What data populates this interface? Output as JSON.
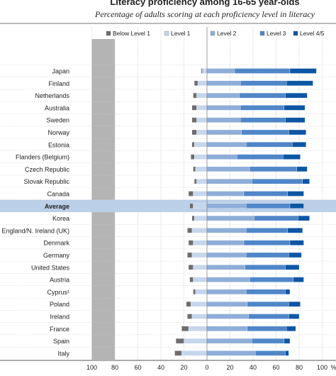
{
  "chart_data": {
    "type": "bar",
    "stacking": "diverging",
    "title": "Literacy proficiency among 16-65 year-olds",
    "subtitle": "Percentage of adults scoring at each proficiency level in literacy",
    "x_tick_labels": [
      "100",
      "80",
      "60",
      "40",
      "20",
      "0",
      "20",
      "40",
      "60",
      "80",
      "100",
      "%"
    ],
    "xlim": [
      -100,
      100
    ],
    "grid": true,
    "legend_position": "top",
    "highlight_category": "Average",
    "categories": [
      "Japan",
      "Finland",
      "Netherlands",
      "Australia",
      "Sweden",
      "Norway",
      "Estonia",
      "Flanders (Belgium)",
      "Czech Republic",
      "Slovak Republic",
      "Canada",
      "Average",
      "Korea",
      "England/N. Ireland (UK)",
      "Denmark",
      "Germany",
      "United States",
      "Austria",
      "Cyprus¹",
      "Poland",
      "Ireland",
      "France",
      "Spain",
      "Italy"
    ],
    "series": [
      {
        "name": "Below Level 1",
        "side": "left",
        "color": "#6d6d6d",
        "values": [
          1,
          3,
          3,
          4,
          4,
          4,
          2,
          3,
          2,
          2,
          4,
          3,
          2,
          4,
          4,
          4,
          4,
          3,
          2,
          4,
          4,
          6,
          7,
          6
        ]
      },
      {
        "name": "Level 1",
        "side": "left",
        "color": "#c6d6ec",
        "values": [
          4,
          8,
          9,
          9,
          9,
          9,
          11,
          11,
          10,
          9,
          12,
          12,
          11,
          13,
          12,
          13,
          12,
          12,
          10,
          14,
          13,
          16,
          20,
          22
        ]
      },
      {
        "name": "Level 2",
        "side": "right",
        "color": "#8eaed8",
        "values": [
          24,
          29,
          28,
          29,
          29,
          30,
          34,
          26,
          37,
          39,
          32,
          34,
          41,
          34,
          32,
          34,
          33,
          37,
          34,
          35,
          36,
          35,
          39,
          42
        ]
      },
      {
        "name": "Level 3",
        "side": "right",
        "color": "#4f86c8",
        "values": [
          48,
          40,
          40,
          38,
          39,
          41,
          40,
          40,
          41,
          44,
          38,
          38,
          38,
          36,
          40,
          37,
          35,
          38,
          34,
          36,
          35,
          34,
          28,
          26
        ]
      },
      {
        "name": "Level 4/5",
        "side": "right",
        "color": "#0d56a4",
        "values": [
          23,
          23,
          19,
          18,
          17,
          15,
          12,
          15,
          9,
          6,
          14,
          12,
          10,
          13,
          12,
          11,
          12,
          9,
          4,
          10,
          9,
          8,
          5,
          3
        ]
      }
    ]
  }
}
